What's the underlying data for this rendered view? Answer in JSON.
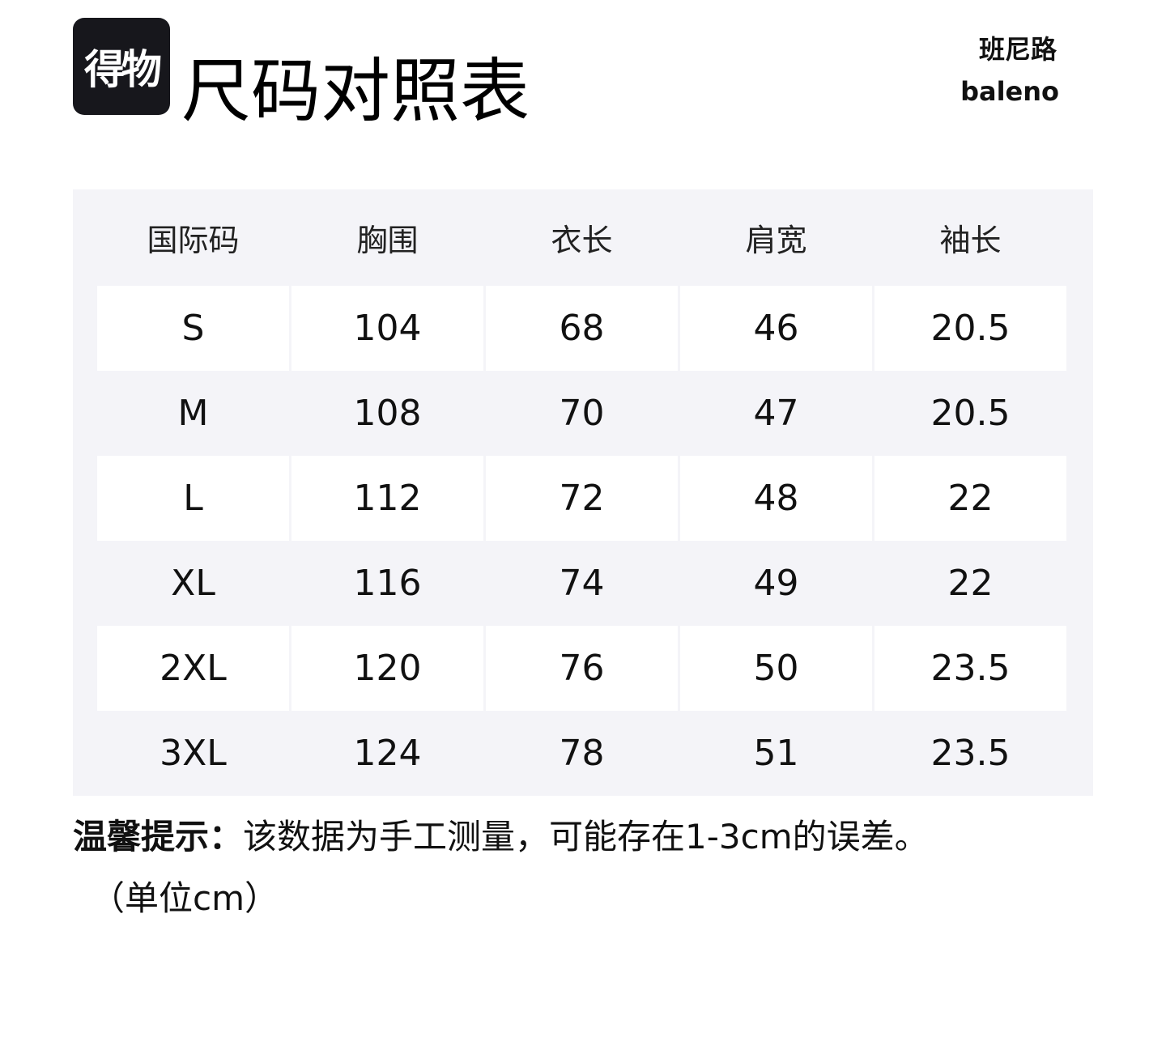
{
  "logo_text": "得物",
  "title": "尺码对照表",
  "brand": {
    "chinese": "班尼路",
    "english": "baleno"
  },
  "table": {
    "headers": [
      "国际码",
      "胸围",
      "衣长",
      "肩宽",
      "袖长"
    ],
    "rows": [
      [
        "S",
        "104",
        "68",
        "46",
        "20.5"
      ],
      [
        "M",
        "108",
        "70",
        "47",
        "20.5"
      ],
      [
        "L",
        "112",
        "72",
        "48",
        "22"
      ],
      [
        "XL",
        "116",
        "74",
        "49",
        "22"
      ],
      [
        "2XL",
        "120",
        "76",
        "50",
        "23.5"
      ],
      [
        "3XL",
        "124",
        "78",
        "51",
        "23.5"
      ]
    ]
  },
  "note": {
    "label": "温馨提示：",
    "text": "该数据为手工测量，可能存在1-3cm的误差。",
    "unit": "（单位cm）"
  },
  "colors": {
    "table_bg": "#f4f4f8",
    "logo_bg": "#17171c"
  }
}
